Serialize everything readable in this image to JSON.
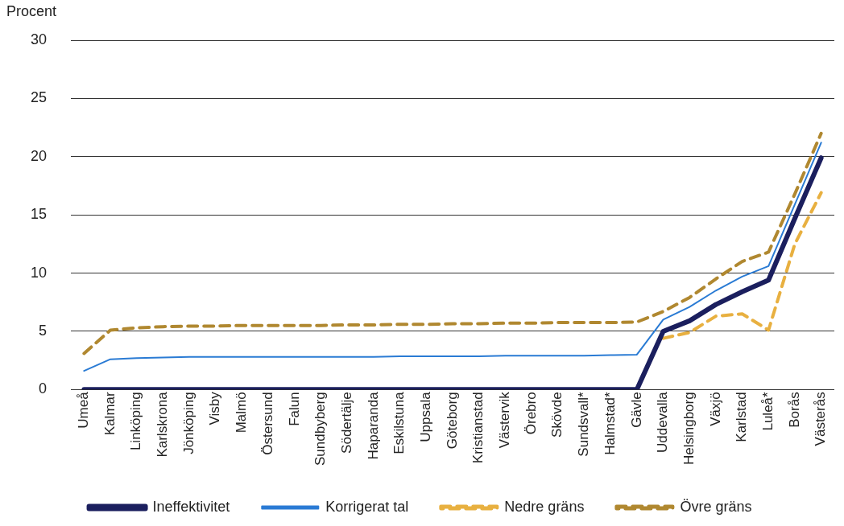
{
  "chart_data": {
    "type": "line",
    "ylabel": "Procent",
    "categories": [
      "Umeå",
      "Kalmar",
      "Linköping",
      "Karlskrona",
      "Jönköping",
      "Visby",
      "Malmö",
      "Östersund",
      "Falun",
      "Sundbyberg",
      "Södertälje",
      "Haparanda",
      "Eskilstuna",
      "Uppsala",
      "Göteborg",
      "Kristianstad",
      "Västervik",
      "Örebro",
      "Skövde",
      "Sundsvall*",
      "Halmstad*",
      "Gävle",
      "Uddevalla",
      "Helsingborg",
      "Växjö",
      "Karlstad",
      "Luleå*",
      "Borås",
      "Västerås"
    ],
    "ylim": [
      0,
      30
    ],
    "yticks": [
      0,
      5,
      10,
      15,
      20,
      25,
      30
    ],
    "grid": "y",
    "legend": "bottom",
    "marker": "none",
    "series": [
      {
        "name": "Ineffektivitet",
        "color": "#1b1f5e",
        "line_style": "solid",
        "values": [
          0,
          0,
          0,
          0,
          0,
          0,
          0,
          0,
          0,
          0,
          0,
          0,
          0,
          0,
          0,
          0,
          0,
          0,
          0,
          0,
          0,
          0,
          5.0,
          5.9,
          7.3,
          8.4,
          9.4,
          14.7,
          19.9
        ]
      },
      {
        "name": "Korrigerat tal",
        "color": "#2a7bd4",
        "line_style": "solid",
        "values": [
          1.6,
          2.6,
          2.7,
          2.75,
          2.8,
          2.8,
          2.8,
          2.8,
          2.8,
          2.8,
          2.8,
          2.8,
          2.85,
          2.85,
          2.85,
          2.85,
          2.9,
          2.9,
          2.9,
          2.9,
          2.95,
          3.0,
          6.0,
          7.1,
          8.5,
          9.7,
          10.6,
          15.9,
          21.2
        ]
      },
      {
        "name": "Nedre gräns",
        "color": "#e8b040",
        "line_style": "dashed",
        "values": [
          null,
          null,
          null,
          null,
          null,
          null,
          null,
          null,
          null,
          null,
          null,
          null,
          null,
          null,
          null,
          null,
          null,
          null,
          null,
          null,
          null,
          null,
          4.4,
          4.9,
          6.3,
          6.5,
          5.1,
          12.5,
          16.9
        ]
      },
      {
        "name": "Övre gräns",
        "color": "#b08830",
        "line_style": "dashed",
        "values": [
          3.1,
          5.1,
          5.3,
          5.4,
          5.45,
          5.45,
          5.5,
          5.5,
          5.5,
          5.5,
          5.55,
          5.55,
          5.6,
          5.6,
          5.65,
          5.65,
          5.7,
          5.7,
          5.75,
          5.75,
          5.75,
          5.8,
          6.7,
          7.9,
          9.5,
          11.0,
          11.8,
          16.8,
          22.0
        ]
      }
    ]
  }
}
